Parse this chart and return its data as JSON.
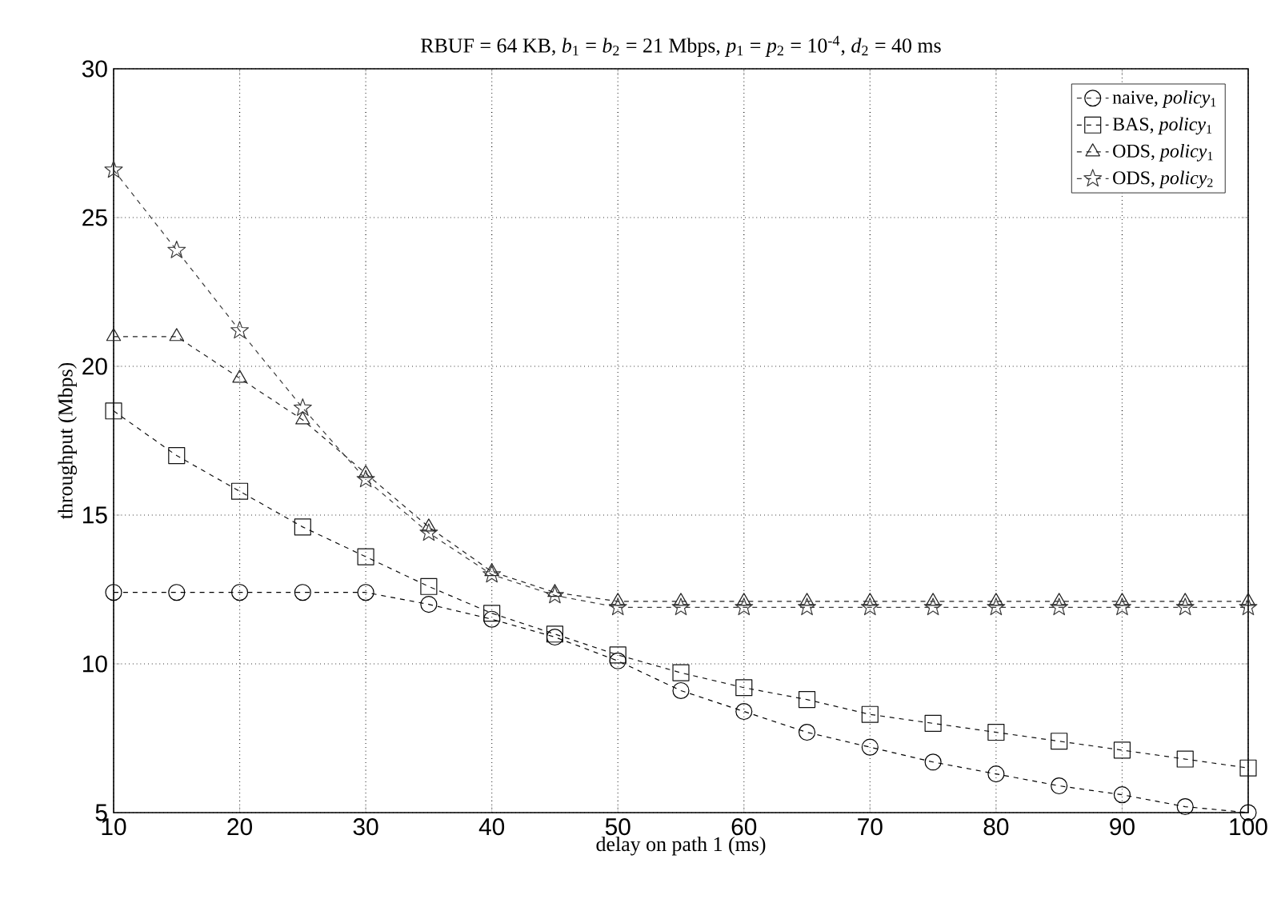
{
  "chart_data": {
    "type": "line",
    "title": "RBUF = 64 KB, *b*$_{1}$ = *b*$_{2}$ = 21 Mbps, *p*$_{1}$ = *p*$_{2}$ = 10$^{-4}$, *d*$_{2}$ = 40 ms",
    "xlabel": "delay on path 1 (ms)",
    "ylabel": "throughput (Mbps)",
    "x": [
      10,
      15,
      20,
      25,
      30,
      35,
      40,
      45,
      50,
      55,
      60,
      65,
      70,
      75,
      80,
      85,
      90,
      95,
      100
    ],
    "series": [
      {
        "name": "naive, *policy*$_{1}$",
        "color": "#000000",
        "marker": "circle",
        "values": [
          12.4,
          12.4,
          12.4,
          12.4,
          12.4,
          12.0,
          11.5,
          10.9,
          10.1,
          9.1,
          8.4,
          7.7,
          7.2,
          6.7,
          6.3,
          5.9,
          5.6,
          5.2,
          5.0
        ]
      },
      {
        "name": "BAS, *policy*$_{1}$",
        "color": "#101010",
        "marker": "square",
        "values": [
          18.5,
          17.0,
          15.8,
          14.6,
          13.6,
          12.6,
          11.7,
          11.0,
          10.3,
          9.7,
          9.2,
          8.8,
          8.3,
          8.0,
          7.7,
          7.4,
          7.1,
          6.8,
          6.5
        ]
      },
      {
        "name": "ODS, *policy*$_{1}$",
        "color": "#202020",
        "marker": "triangle",
        "values": [
          21.0,
          21.0,
          19.6,
          18.2,
          16.4,
          14.6,
          13.1,
          12.4,
          12.1,
          12.1,
          12.1,
          12.1,
          12.1,
          12.1,
          12.1,
          12.1,
          12.1,
          12.1,
          12.1
        ]
      },
      {
        "name": "ODS, *policy*$_{2}$",
        "color": "#3a3a3a",
        "marker": "star",
        "values": [
          26.6,
          23.9,
          21.2,
          18.6,
          16.2,
          14.4,
          13.0,
          12.3,
          11.9,
          11.9,
          11.9,
          11.9,
          11.9,
          11.9,
          11.9,
          11.9,
          11.9,
          11.9,
          11.9
        ]
      }
    ],
    "xlim": [
      10,
      100
    ],
    "xticks": [
      10,
      20,
      30,
      40,
      50,
      60,
      70,
      80,
      90,
      100
    ],
    "ylim": [
      5,
      30
    ],
    "yticks": [
      5,
      10,
      15,
      20,
      25,
      30
    ],
    "grid": true,
    "legend": "top right",
    "line_style": "dashed"
  }
}
